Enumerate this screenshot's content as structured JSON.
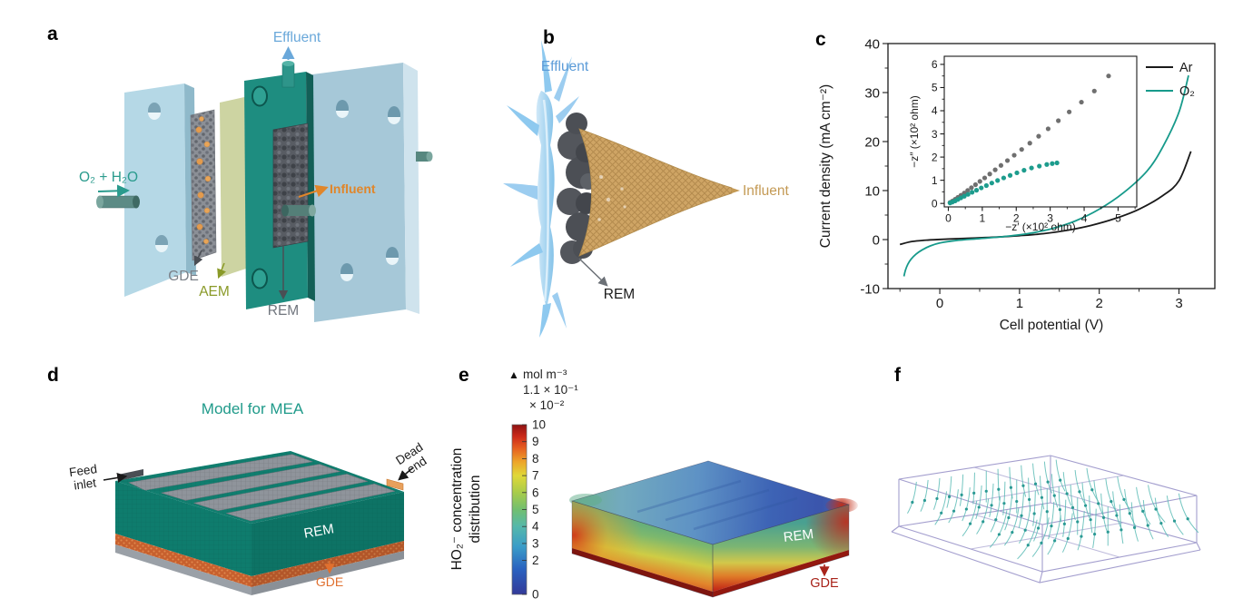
{
  "colors": {
    "teal": "#179a8b",
    "light_blue": "#6aa8da",
    "orange": "#e0862a",
    "olive": "#8a9a28",
    "gray_label": "#737880",
    "tan": "#c49a55",
    "dark_red": "#a8231a",
    "streamline_teal": "#53b8b2",
    "streamline_dot": "#2b9a94",
    "wireframe_purple": "#9a94c9"
  },
  "panels": {
    "a": {
      "letter": "a",
      "labels": {
        "inlet": "O₂ + H₂O",
        "effluent": "Effluent",
        "influent": "Influent",
        "gde": "GDE",
        "aem": "AEM",
        "rem": "REM"
      }
    },
    "b": {
      "letter": "b",
      "labels": {
        "effluent": "Effluent",
        "influent": "Influent",
        "rem": "REM"
      }
    },
    "c": {
      "letter": "c"
    },
    "d": {
      "letter": "d",
      "title": "Model for MEA",
      "labels": {
        "feed_inlet_line1": "Feed",
        "feed_inlet_line2": "inlet",
        "dead_end_line1": "Dead",
        "dead_end_line2": "end",
        "rem": "REM",
        "gde": "GDE"
      }
    },
    "e": {
      "letter": "e",
      "colorbar": {
        "marker": "▲",
        "unit": "mol m⁻³",
        "max_value": "1.1 × 10⁻¹",
        "scale": "× 10⁻²",
        "ticks": [
          10,
          9,
          8,
          7,
          6,
          5,
          4,
          3,
          2,
          0
        ]
      },
      "axis_label_line1": "HO₂⁻ concentration",
      "axis_label_line2": "distribution",
      "labels": {
        "rem": "REM",
        "gde": "GDE"
      }
    },
    "f": {
      "letter": "f"
    }
  },
  "chart_data": [
    {
      "id": "main",
      "type": "line",
      "title": "",
      "xlabel": "Cell potential (V)",
      "ylabel": "Current density (mA cm⁻²)",
      "xlim": [
        -0.65,
        3.45
      ],
      "ylim": [
        -10,
        40
      ],
      "xticks": [
        0,
        1,
        2,
        3
      ],
      "yticks": [
        -10,
        0,
        10,
        20,
        30,
        40
      ],
      "grid": false,
      "legend_position": "top-right",
      "series": [
        {
          "name": "Ar",
          "color": "#1a1a1a",
          "x": [
            -0.5,
            -0.35,
            -0.15,
            0.1,
            0.4,
            0.7,
            1.0,
            1.3,
            1.6,
            1.9,
            2.2,
            2.5,
            2.8,
            3.0,
            3.15
          ],
          "y": [
            -1.0,
            -0.4,
            -0.1,
            0.1,
            0.3,
            0.5,
            0.8,
            1.2,
            1.9,
            2.9,
            4.3,
            6.2,
            9.0,
            12.0,
            18.0
          ]
        },
        {
          "name": "O₂",
          "color": "#179a8b",
          "x": [
            -0.45,
            -0.43,
            -0.4,
            -0.36,
            -0.3,
            -0.22,
            -0.12,
            0.0,
            0.2,
            0.5,
            0.8,
            1.1,
            1.4,
            1.7,
            2.0,
            2.3,
            2.6,
            2.8,
            3.0,
            3.12
          ],
          "y": [
            -7.5,
            -6.2,
            -5.0,
            -4.0,
            -3.0,
            -2.1,
            -1.3,
            -0.7,
            -0.2,
            0.2,
            0.6,
            1.2,
            2.2,
            3.8,
            6.2,
            9.5,
            14.0,
            19.0,
            26.0,
            33.5
          ]
        }
      ]
    },
    {
      "id": "inset",
      "type": "scatter",
      "title": "",
      "xlabel": "−z′ (×10² ohm)",
      "ylabel": "−z″ (×10² ohm)",
      "xlim": [
        -0.12,
        5.55
      ],
      "ylim": [
        -0.15,
        6.35
      ],
      "xticks": [
        0,
        1,
        2,
        3,
        4,
        5
      ],
      "yticks": [
        0,
        1,
        2,
        3,
        4,
        5,
        6
      ],
      "grid": false,
      "series": [
        {
          "name": "Ar",
          "color": "#6f6f6f",
          "x": [
            0.05,
            0.12,
            0.2,
            0.28,
            0.37,
            0.47,
            0.57,
            0.68,
            0.8,
            0.93,
            1.07,
            1.22,
            1.38,
            1.55,
            1.74,
            1.94,
            2.16,
            2.4,
            2.66,
            2.94,
            3.24,
            3.56,
            3.92,
            4.3,
            4.72
          ],
          "y": [
            0.04,
            0.1,
            0.18,
            0.26,
            0.35,
            0.45,
            0.56,
            0.68,
            0.81,
            0.95,
            1.1,
            1.27,
            1.45,
            1.64,
            1.85,
            2.08,
            2.33,
            2.6,
            2.9,
            3.22,
            3.57,
            3.95,
            4.37,
            4.85,
            5.5
          ]
        },
        {
          "name": "O₂",
          "color": "#1d9c8d",
          "x": [
            0.05,
            0.12,
            0.2,
            0.28,
            0.37,
            0.47,
            0.58,
            0.7,
            0.83,
            0.97,
            1.12,
            1.28,
            1.45,
            1.63,
            1.82,
            2.02,
            2.23,
            2.45,
            2.68,
            2.9,
            3.06,
            3.2
          ],
          "y": [
            0.02,
            0.06,
            0.11,
            0.17,
            0.24,
            0.31,
            0.39,
            0.48,
            0.57,
            0.67,
            0.77,
            0.88,
            0.99,
            1.1,
            1.21,
            1.32,
            1.43,
            1.53,
            1.61,
            1.68,
            1.72,
            1.75
          ]
        }
      ]
    }
  ]
}
